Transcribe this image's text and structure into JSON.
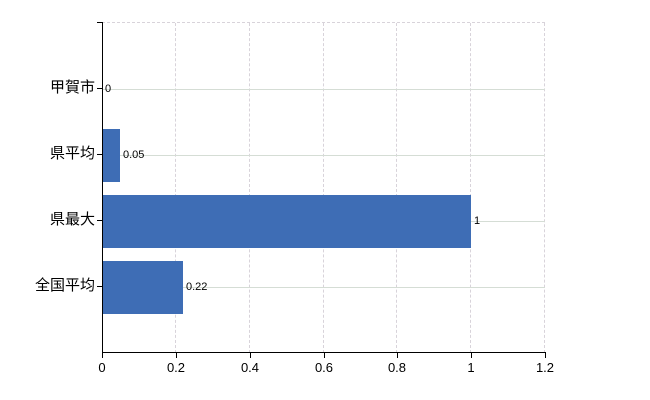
{
  "chart_data": {
    "type": "bar",
    "orientation": "horizontal",
    "title": "",
    "xlabel": "",
    "ylabel": "",
    "categories": [
      "甲賀市",
      "県平均",
      "県最大",
      "全国平均"
    ],
    "values": [
      0,
      0.05,
      1,
      0.22
    ],
    "value_labels": [
      "0",
      "0.05",
      "1",
      "0.22"
    ],
    "x_ticks": [
      0,
      0.2,
      0.4,
      0.6,
      0.8,
      1,
      1.2
    ],
    "x_tick_labels": [
      "0",
      "0.2",
      "0.4",
      "0.6",
      "0.8",
      "1",
      "1.2"
    ],
    "xlim": [
      0,
      1.2
    ],
    "grid": true,
    "legend": false,
    "gridline_style": {
      "horizontal": "solid",
      "vertical": "dashed"
    },
    "colors": {
      "bar": "#3e6db5",
      "h_gridline": "#d5ddd5",
      "v_gridline": "#d8d3da",
      "axis": "#000000",
      "label": "#000000",
      "background": "#ffffff"
    }
  }
}
